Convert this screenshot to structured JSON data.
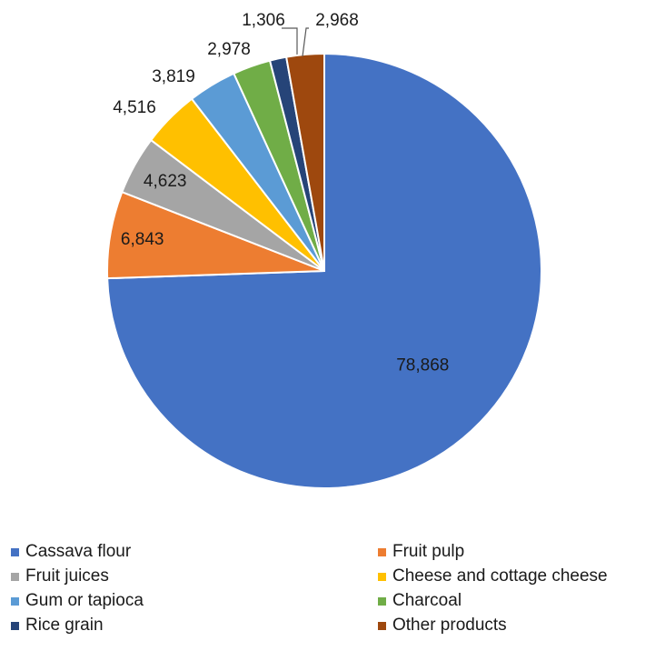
{
  "chart_data": {
    "type": "pie",
    "categories": [
      "Cassava flour",
      "Fruit pulp",
      "Fruit juices",
      "Cheese and cottage cheese",
      "Gum or tapioca",
      "Charcoal",
      "Rice grain",
      "Other products"
    ],
    "values": [
      78868,
      6843,
      4623,
      4516,
      3819,
      2978,
      1306,
      2968
    ],
    "data_labels": [
      "78,868",
      "6,843",
      "4,623",
      "4,516",
      "3,819",
      "2,978",
      "1,306",
      "2,968"
    ],
    "colors": [
      "#4472C4",
      "#ED7D31",
      "#A5A5A5",
      "#FFC000",
      "#5B9BD5",
      "#70AD47",
      "#264478",
      "#9E480E"
    ],
    "title": "",
    "legend_position": "bottom",
    "start_angle": "12 o'clock",
    "direction": "clockwise"
  }
}
